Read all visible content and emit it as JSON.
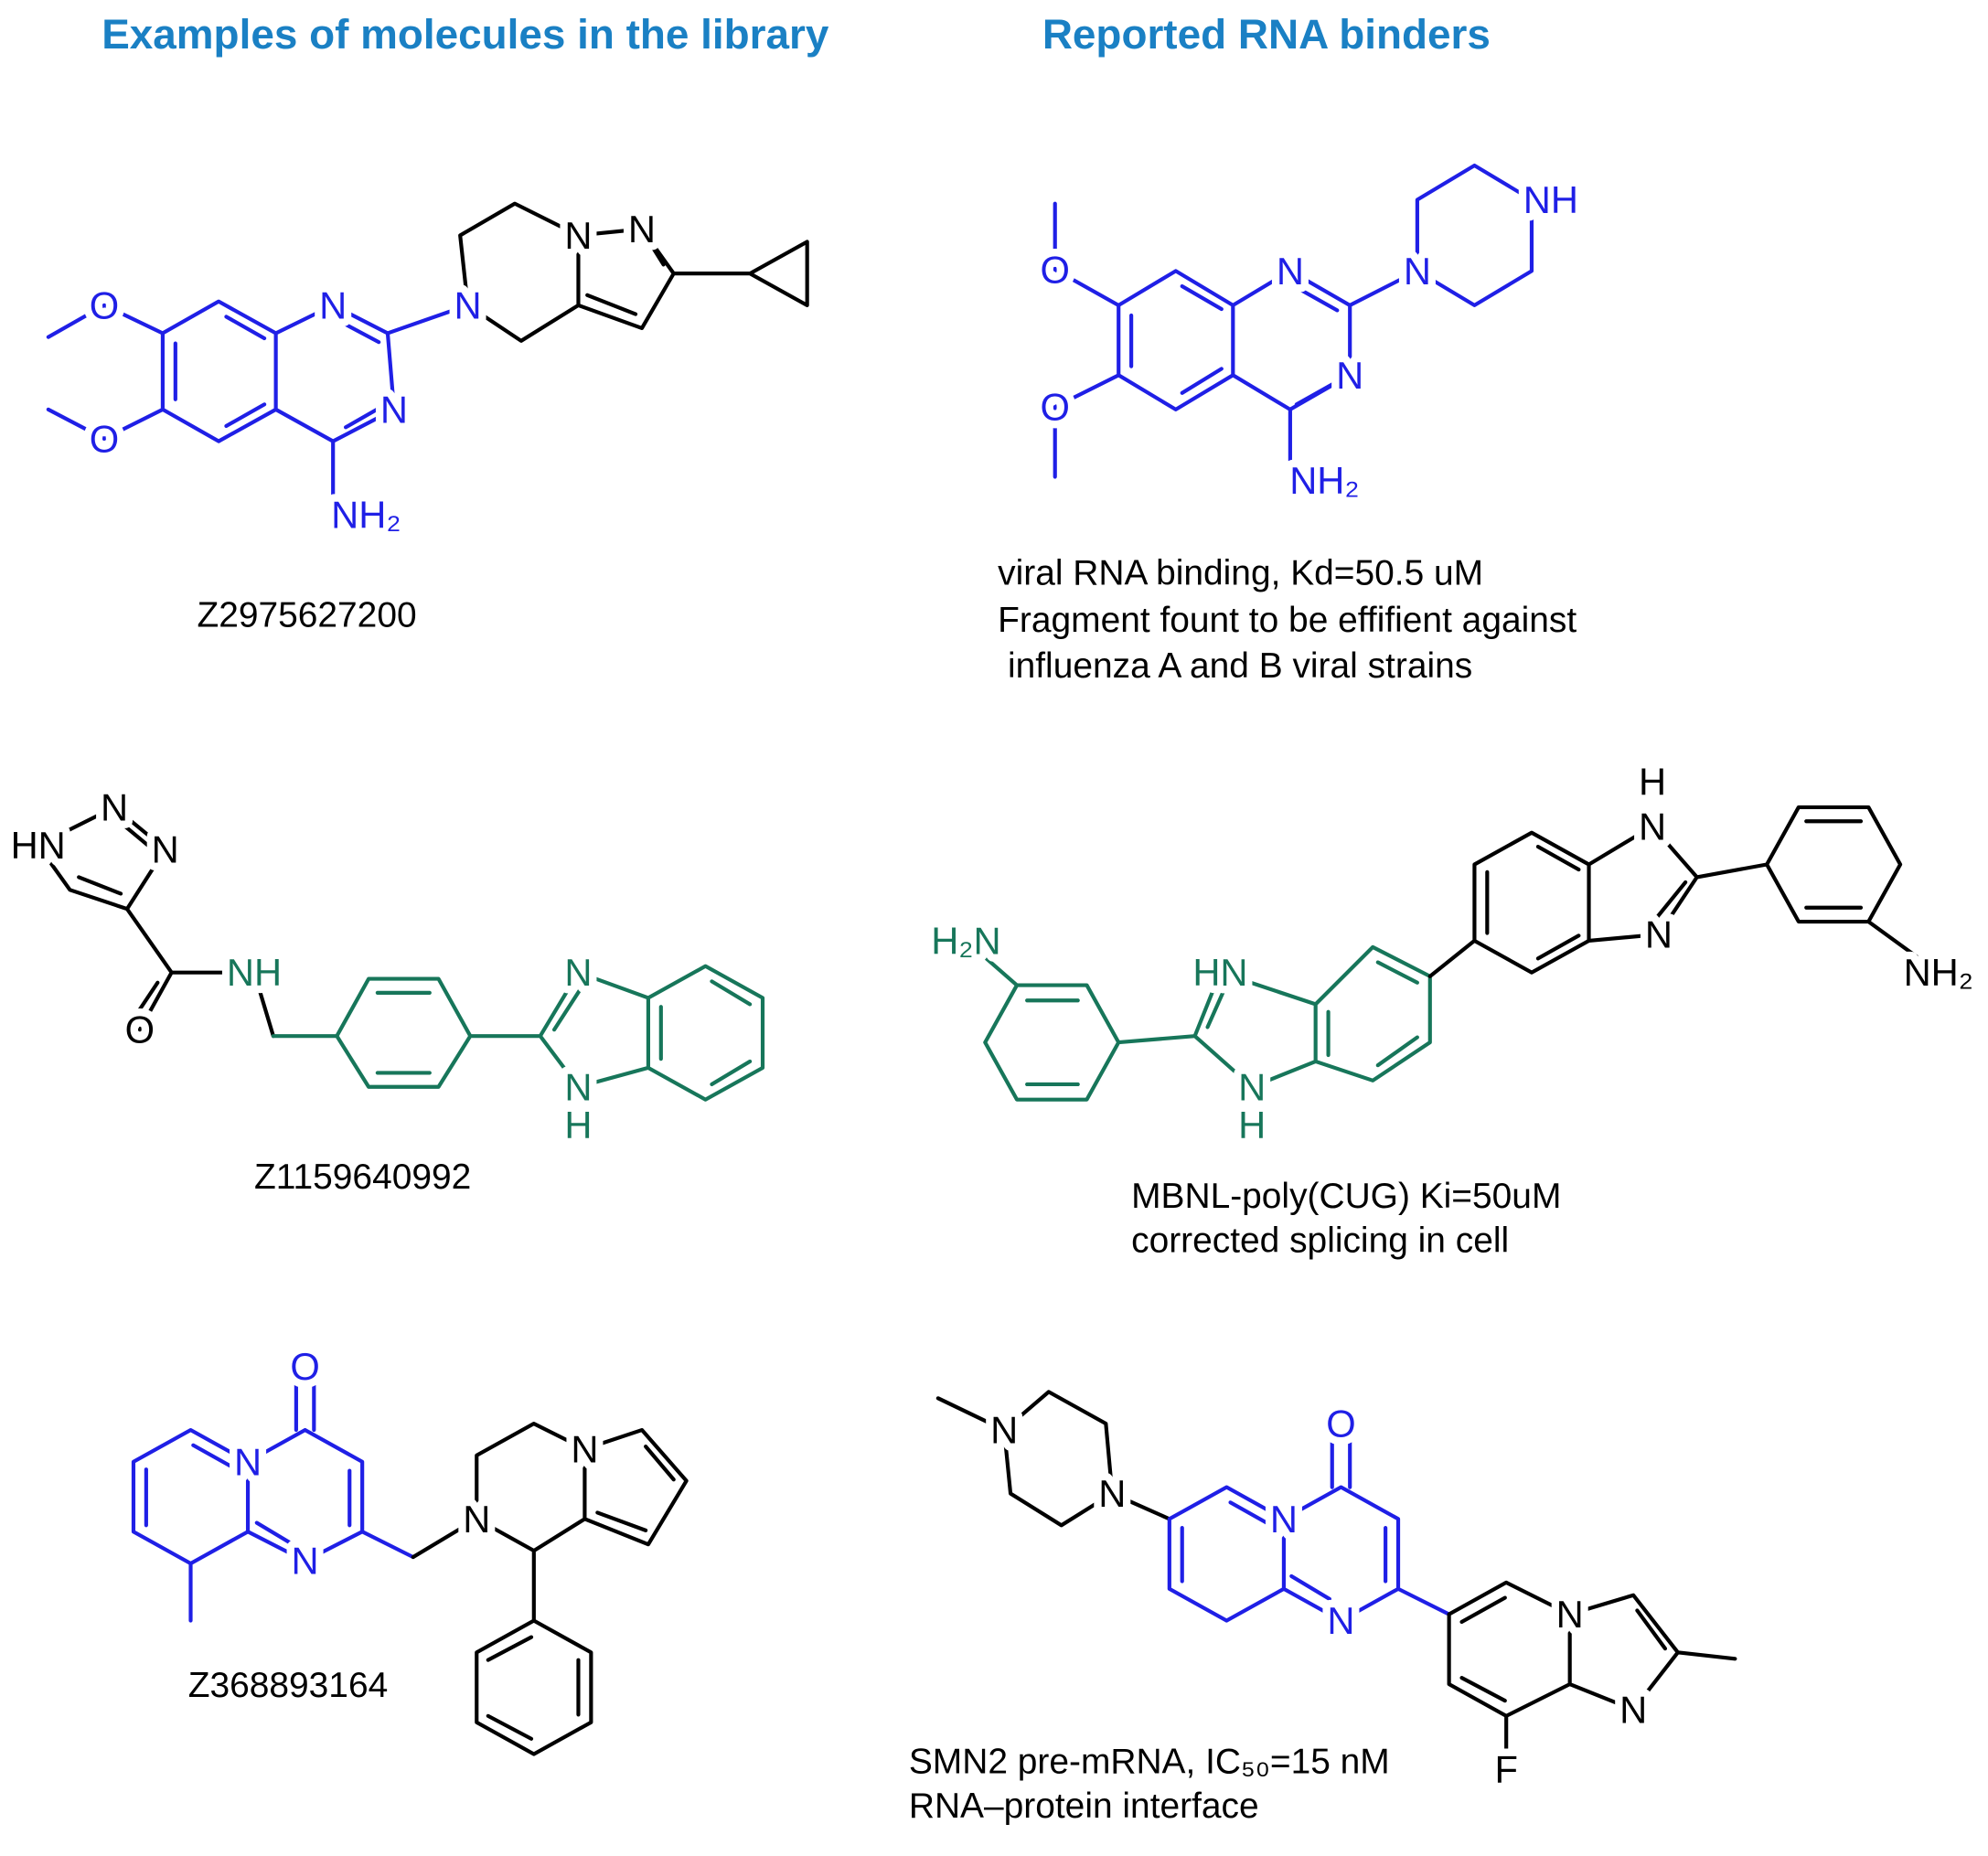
{
  "left_title": "Examples of molecules in the library",
  "right_title": "Reported RNA binders",
  "molecules": [
    {
      "atoms": [
        "O",
        "O",
        "N",
        "N",
        "NH₂",
        "N",
        "N",
        "N"
      ],
      "caption": [
        "Z2975627200"
      ]
    },
    {
      "atoms": [
        "O",
        "O",
        "N",
        "N",
        "NH₂",
        "N",
        "NH"
      ],
      "caption": [
        "viral RNA binding, Kd=50.5 uM",
        "Fragment fount to be effifient against",
        " influenza A and B viral strains"
      ]
    },
    {
      "atoms": [
        "HN",
        "N",
        "N",
        "NH",
        "O",
        "N",
        "N",
        "H"
      ],
      "caption": [
        "Z1159640992"
      ]
    },
    {
      "atoms": [
        "H₂N",
        "HN",
        "N",
        "H",
        "N",
        "H",
        "N",
        "NH₂"
      ],
      "caption": [
        "MBNL-poly(CUG) Ki=50uM",
        "corrected splicing in cell"
      ]
    },
    {
      "atoms": [
        "O",
        "N",
        "N",
        "N",
        "N"
      ],
      "caption": [
        "Z368893164"
      ]
    },
    {
      "atoms": [
        "N",
        "N",
        "N",
        "O",
        "N",
        "N",
        "N",
        "F"
      ],
      "caption": [
        "SMN2 pre-mRNA, IC₅₀=15 nM",
        "RNA–protein interface"
      ]
    }
  ]
}
